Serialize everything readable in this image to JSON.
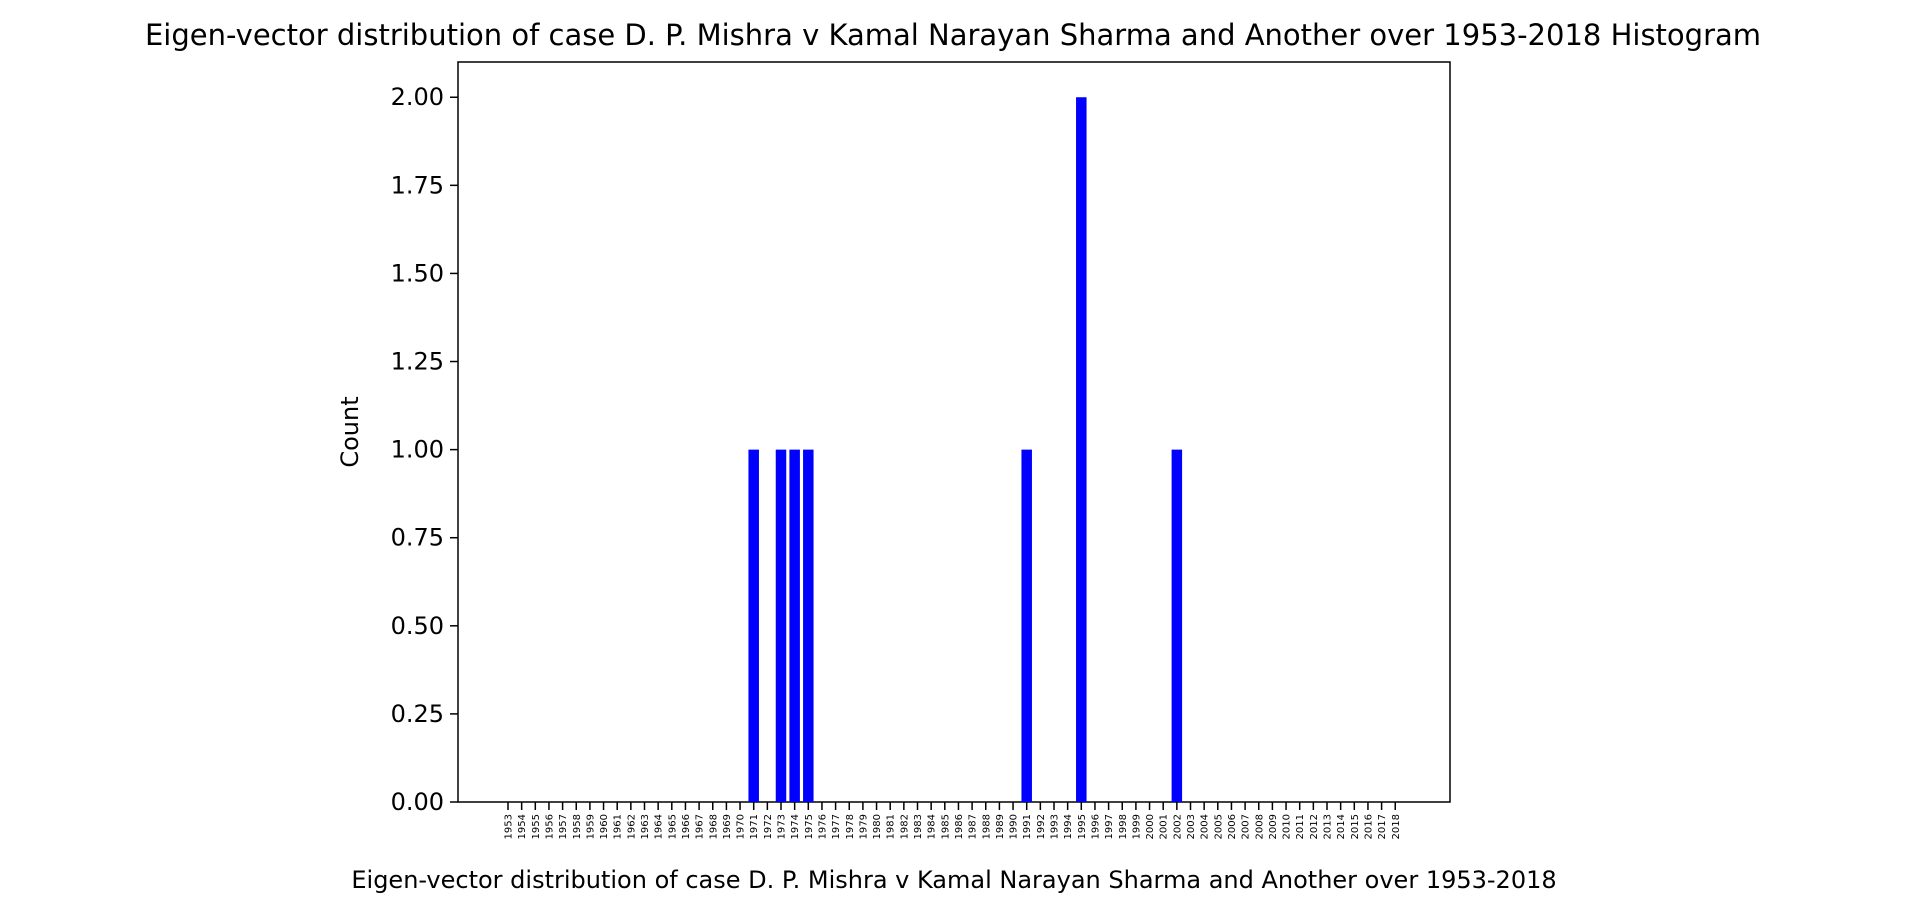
{
  "chart_data": {
    "type": "bar",
    "title": "Eigen-vector distribution of case D. P. Mishra v Kamal Narayan Sharma and Another over 1953-2018 Histogram",
    "xlabel": "Eigen-vector distribution of case D. P. Mishra v Kamal Narayan Sharma and Another over 1953-2018",
    "ylabel": "Count",
    "ylim": [
      0,
      2.1
    ],
    "yticks": [
      "0.00",
      "0.25",
      "0.50",
      "0.75",
      "1.00",
      "1.25",
      "1.50",
      "1.75",
      "2.00"
    ],
    "bar_color": "#0000ff",
    "grid": false,
    "categories": [
      "1953",
      "1954",
      "1955",
      "1956",
      "1957",
      "1958",
      "1959",
      "1960",
      "1961",
      "1962",
      "1963",
      "1964",
      "1965",
      "1966",
      "1967",
      "1968",
      "1969",
      "1970",
      "1971",
      "1972",
      "1973",
      "1974",
      "1975",
      "1976",
      "1977",
      "1978",
      "1979",
      "1980",
      "1981",
      "1982",
      "1983",
      "1984",
      "1985",
      "1986",
      "1987",
      "1988",
      "1989",
      "1990",
      "1991",
      "1992",
      "1993",
      "1994",
      "1995",
      "1996",
      "1997",
      "1998",
      "1999",
      "2000",
      "2001",
      "2002",
      "2003",
      "2004",
      "2005",
      "2006",
      "2007",
      "2008",
      "2009",
      "2010",
      "2011",
      "2012",
      "2013",
      "2014",
      "2015",
      "2016",
      "2017",
      "2018"
    ],
    "values": [
      0,
      0,
      0,
      0,
      0,
      0,
      0,
      0,
      0,
      0,
      0,
      0,
      0,
      0,
      0,
      0,
      0,
      0,
      1,
      0,
      1,
      1,
      1,
      0,
      0,
      0,
      0,
      0,
      0,
      0,
      0,
      0,
      0,
      0,
      0,
      0,
      0,
      0,
      1,
      0,
      0,
      0,
      2,
      0,
      0,
      0,
      0,
      0,
      0,
      1,
      0,
      0,
      0,
      0,
      0,
      0,
      0,
      0,
      0,
      0,
      0,
      0,
      0,
      0,
      0,
      0
    ]
  }
}
